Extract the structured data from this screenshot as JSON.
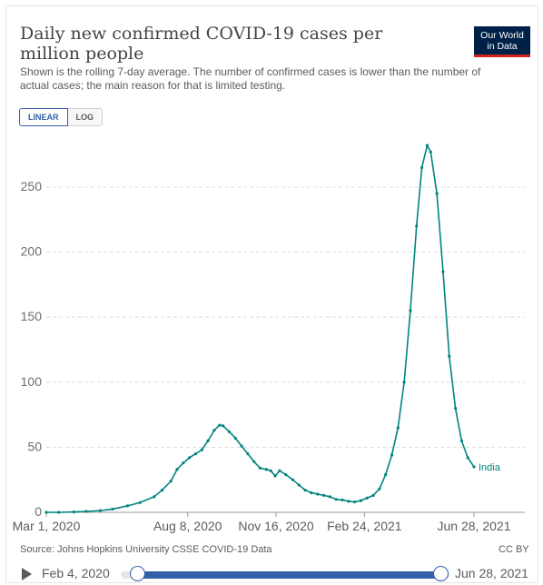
{
  "header": {
    "title": "Daily new confirmed COVID-19 cases per million people",
    "subtitle": "Shown is the rolling 7-day average. The number of confirmed cases is lower than the number of actual cases; the main reason for that is limited testing.",
    "logo_line1": "Our World",
    "logo_line2": "in Data"
  },
  "scale_toggle": {
    "linear_label": "LINEAR",
    "log_label": "LOG",
    "selected": "LINEAR"
  },
  "footer": {
    "source": "Source: Johns Hopkins University CSSE COVID-19 Data",
    "license": "CC BY"
  },
  "timeline": {
    "start_label": "Feb 4, 2020",
    "end_label": "Jun 28, 2021"
  },
  "colors": {
    "series": "#00847e",
    "accent": "#3360a9",
    "logo_bg": "#002147",
    "logo_bar": "#ce261e"
  },
  "chart_data": {
    "type": "line",
    "x_type": "date",
    "xlim": [
      "2020-03-01",
      "2021-06-28"
    ],
    "ylim": [
      0,
      280
    ],
    "y_ticks": [
      0,
      50,
      100,
      150,
      200,
      250
    ],
    "x_ticks": [
      {
        "date": "2020-03-01",
        "label": "Mar 1, 2020"
      },
      {
        "date": "2020-08-08",
        "label": "Aug 8, 2020"
      },
      {
        "date": "2020-11-16",
        "label": "Nov 16, 2020"
      },
      {
        "date": "2021-02-24",
        "label": "Feb 24, 2021"
      },
      {
        "date": "2021-06-28",
        "label": "Jun 28, 2021"
      }
    ],
    "grid": "horizontal-dashed",
    "series": [
      {
        "name": "India",
        "points": [
          [
            "2020-03-01",
            0
          ],
          [
            "2020-03-15",
            0
          ],
          [
            "2020-04-01",
            0.3
          ],
          [
            "2020-04-15",
            0.7
          ],
          [
            "2020-05-01",
            1.3
          ],
          [
            "2020-05-15",
            2.5
          ],
          [
            "2020-06-01",
            5
          ],
          [
            "2020-06-15",
            7.5
          ],
          [
            "2020-07-01",
            12
          ],
          [
            "2020-07-10",
            17
          ],
          [
            "2020-07-20",
            24
          ],
          [
            "2020-07-27",
            33
          ],
          [
            "2020-08-03",
            38
          ],
          [
            "2020-08-10",
            42
          ],
          [
            "2020-08-17",
            45
          ],
          [
            "2020-08-24",
            48
          ],
          [
            "2020-08-31",
            55
          ],
          [
            "2020-09-07",
            63
          ],
          [
            "2020-09-13",
            67
          ],
          [
            "2020-09-17",
            66.5
          ],
          [
            "2020-09-24",
            62
          ],
          [
            "2020-10-01",
            57
          ],
          [
            "2020-10-08",
            51
          ],
          [
            "2020-10-15",
            45
          ],
          [
            "2020-10-22",
            39
          ],
          [
            "2020-10-29",
            34
          ],
          [
            "2020-11-05",
            33
          ],
          [
            "2020-11-10",
            32
          ],
          [
            "2020-11-15",
            28
          ],
          [
            "2020-11-20",
            32
          ],
          [
            "2020-11-27",
            29
          ],
          [
            "2020-12-05",
            25
          ],
          [
            "2020-12-12",
            21
          ],
          [
            "2020-12-19",
            17
          ],
          [
            "2020-12-26",
            15
          ],
          [
            "2021-01-02",
            14
          ],
          [
            "2021-01-09",
            13
          ],
          [
            "2021-01-16",
            12
          ],
          [
            "2021-01-23",
            10
          ],
          [
            "2021-01-30",
            9.5
          ],
          [
            "2021-02-06",
            8.5
          ],
          [
            "2021-02-13",
            8
          ],
          [
            "2021-02-20",
            9
          ],
          [
            "2021-02-27",
            11
          ],
          [
            "2021-03-06",
            13
          ],
          [
            "2021-03-13",
            18
          ],
          [
            "2021-03-20",
            29
          ],
          [
            "2021-03-27",
            44
          ],
          [
            "2021-04-03",
            65
          ],
          [
            "2021-04-10",
            100
          ],
          [
            "2021-04-17",
            155
          ],
          [
            "2021-04-24",
            220
          ],
          [
            "2021-04-30",
            265
          ],
          [
            "2021-05-06",
            282
          ],
          [
            "2021-05-10",
            277
          ],
          [
            "2021-05-17",
            245
          ],
          [
            "2021-05-24",
            185
          ],
          [
            "2021-05-31",
            120
          ],
          [
            "2021-06-07",
            80
          ],
          [
            "2021-06-14",
            55
          ],
          [
            "2021-06-21",
            42
          ],
          [
            "2021-06-28",
            35
          ]
        ]
      }
    ]
  }
}
